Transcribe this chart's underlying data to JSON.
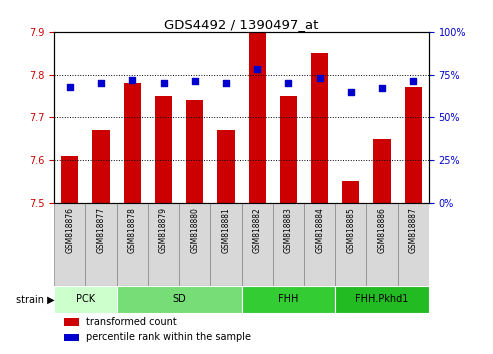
{
  "title": "GDS4492 / 1390497_at",
  "samples": [
    "GSM818876",
    "GSM818877",
    "GSM818878",
    "GSM818879",
    "GSM818880",
    "GSM818881",
    "GSM818882",
    "GSM818883",
    "GSM818884",
    "GSM818885",
    "GSM818886",
    "GSM818887"
  ],
  "red_values": [
    7.61,
    7.67,
    7.78,
    7.75,
    7.74,
    7.67,
    7.9,
    7.75,
    7.85,
    7.55,
    7.65,
    7.77
  ],
  "blue_percentiles": [
    68,
    70,
    72,
    70,
    71,
    70,
    78,
    70,
    73,
    65,
    67,
    71
  ],
  "ylim_left": [
    7.5,
    7.9
  ],
  "ylim_right": [
    0,
    100
  ],
  "yticks_left": [
    7.5,
    7.6,
    7.7,
    7.8,
    7.9
  ],
  "yticks_right": [
    0,
    25,
    50,
    75,
    100
  ],
  "bar_color": "#cc0000",
  "dot_color": "#0000cc",
  "bar_bottom": 7.5,
  "groups": [
    {
      "label": "PCK",
      "start": 0,
      "end": 2,
      "color": "#ccffcc"
    },
    {
      "label": "SD",
      "start": 2,
      "end": 6,
      "color": "#77dd77"
    },
    {
      "label": "FHH",
      "start": 6,
      "end": 9,
      "color": "#33cc33"
    },
    {
      "label": "FHH.Pkhd1",
      "start": 9,
      "end": 12,
      "color": "#22bb22"
    }
  ],
  "legend_items": [
    {
      "label": "transformed count",
      "color": "#cc0000"
    },
    {
      "label": "percentile rank within the sample",
      "color": "#0000cc"
    }
  ],
  "background_color": "#ffffff",
  "tick_color_left": "#cc0000",
  "tick_color_right": "#0000cc",
  "sample_bg_color": "#d8d8d8",
  "sample_border_color": "#888888"
}
